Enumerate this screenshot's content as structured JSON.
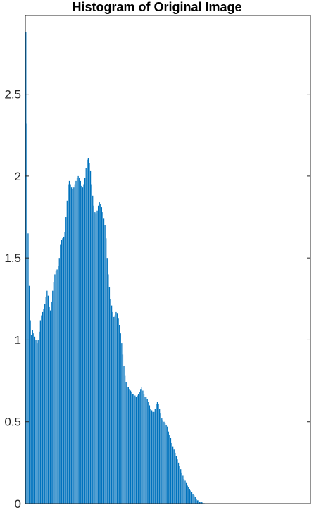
{
  "chart_data": {
    "type": "bar",
    "title": "Histogram of Original Image",
    "xlabel": "",
    "ylabel": "",
    "ylim": [
      0,
      2.98
    ],
    "xlim": [
      0,
      256
    ],
    "yticks": [
      0,
      0.5,
      1,
      1.5,
      2,
      2.5
    ],
    "ytick_labels": [
      "0",
      "0.5",
      "1",
      "1.5",
      "2",
      "2.5"
    ],
    "grid": false,
    "bar_color": "#0072BD",
    "values": [
      2.88,
      2.32,
      1.65,
      1.33,
      1.12,
      1.03,
      1.06,
      1.04,
      1.02,
      1.0,
      0.98,
      1.0,
      1.05,
      1.12,
      1.15,
      1.17,
      1.19,
      1.22,
      1.26,
      1.3,
      1.27,
      1.2,
      1.18,
      1.23,
      1.3,
      1.35,
      1.4,
      1.42,
      1.43,
      1.45,
      1.5,
      1.58,
      1.61,
      1.62,
      1.63,
      1.66,
      1.75,
      1.85,
      1.95,
      1.97,
      1.95,
      1.93,
      1.92,
      1.93,
      1.95,
      1.97,
      1.99,
      2.0,
      1.99,
      1.97,
      1.94,
      1.93,
      1.95,
      1.99,
      2.05,
      2.1,
      2.11,
      2.08,
      2.03,
      1.95,
      1.88,
      1.82,
      1.78,
      1.77,
      1.79,
      1.82,
      1.84,
      1.83,
      1.81,
      1.78,
      1.74,
      1.7,
      1.62,
      1.5,
      1.4,
      1.32,
      1.25,
      1.21,
      1.17,
      1.14,
      1.15,
      1.17,
      1.16,
      1.13,
      1.09,
      1.04,
      0.98,
      0.91,
      0.84,
      0.78,
      0.74,
      0.71,
      0.71,
      0.7,
      0.69,
      0.68,
      0.67,
      0.67,
      0.66,
      0.65,
      0.66,
      0.67,
      0.68,
      0.7,
      0.71,
      0.69,
      0.67,
      0.65,
      0.65,
      0.64,
      0.62,
      0.6,
      0.58,
      0.57,
      0.56,
      0.56,
      0.58,
      0.61,
      0.62,
      0.61,
      0.58,
      0.55,
      0.52,
      0.51,
      0.5,
      0.49,
      0.48,
      0.47,
      0.44,
      0.42,
      0.4,
      0.37,
      0.35,
      0.33,
      0.31,
      0.29,
      0.27,
      0.25,
      0.23,
      0.21,
      0.19,
      0.17,
      0.15,
      0.14,
      0.13,
      0.11,
      0.1,
      0.09,
      0.08,
      0.07,
      0.06,
      0.05,
      0.04,
      0.03,
      0.02,
      0.02,
      0.01,
      0.01,
      0.01,
      0.005,
      0.003,
      0.002,
      0.001,
      0.001,
      0.0005,
      0.0003,
      0,
      0,
      0,
      0,
      0,
      0,
      0,
      0,
      0,
      0,
      0,
      0,
      0,
      0,
      0,
      0,
      0,
      0,
      0,
      0,
      0,
      0,
      0,
      0,
      0,
      0,
      0,
      0,
      0,
      0,
      0,
      0,
      0,
      0,
      0,
      0,
      0,
      0,
      0,
      0,
      0,
      0,
      0,
      0,
      0,
      0,
      0,
      0,
      0,
      0,
      0,
      0,
      0,
      0,
      0,
      0,
      0,
      0,
      0,
      0,
      0,
      0,
      0,
      0,
      0,
      0,
      0,
      0,
      0,
      0,
      0,
      0,
      0,
      0,
      0,
      0,
      0,
      0,
      0,
      0,
      0,
      0,
      0,
      0,
      0,
      0,
      0,
      0,
      0,
      0,
      0,
      0,
      0,
      0,
      0,
      0,
      0,
      0,
      0,
      0,
      0,
      0
    ]
  }
}
